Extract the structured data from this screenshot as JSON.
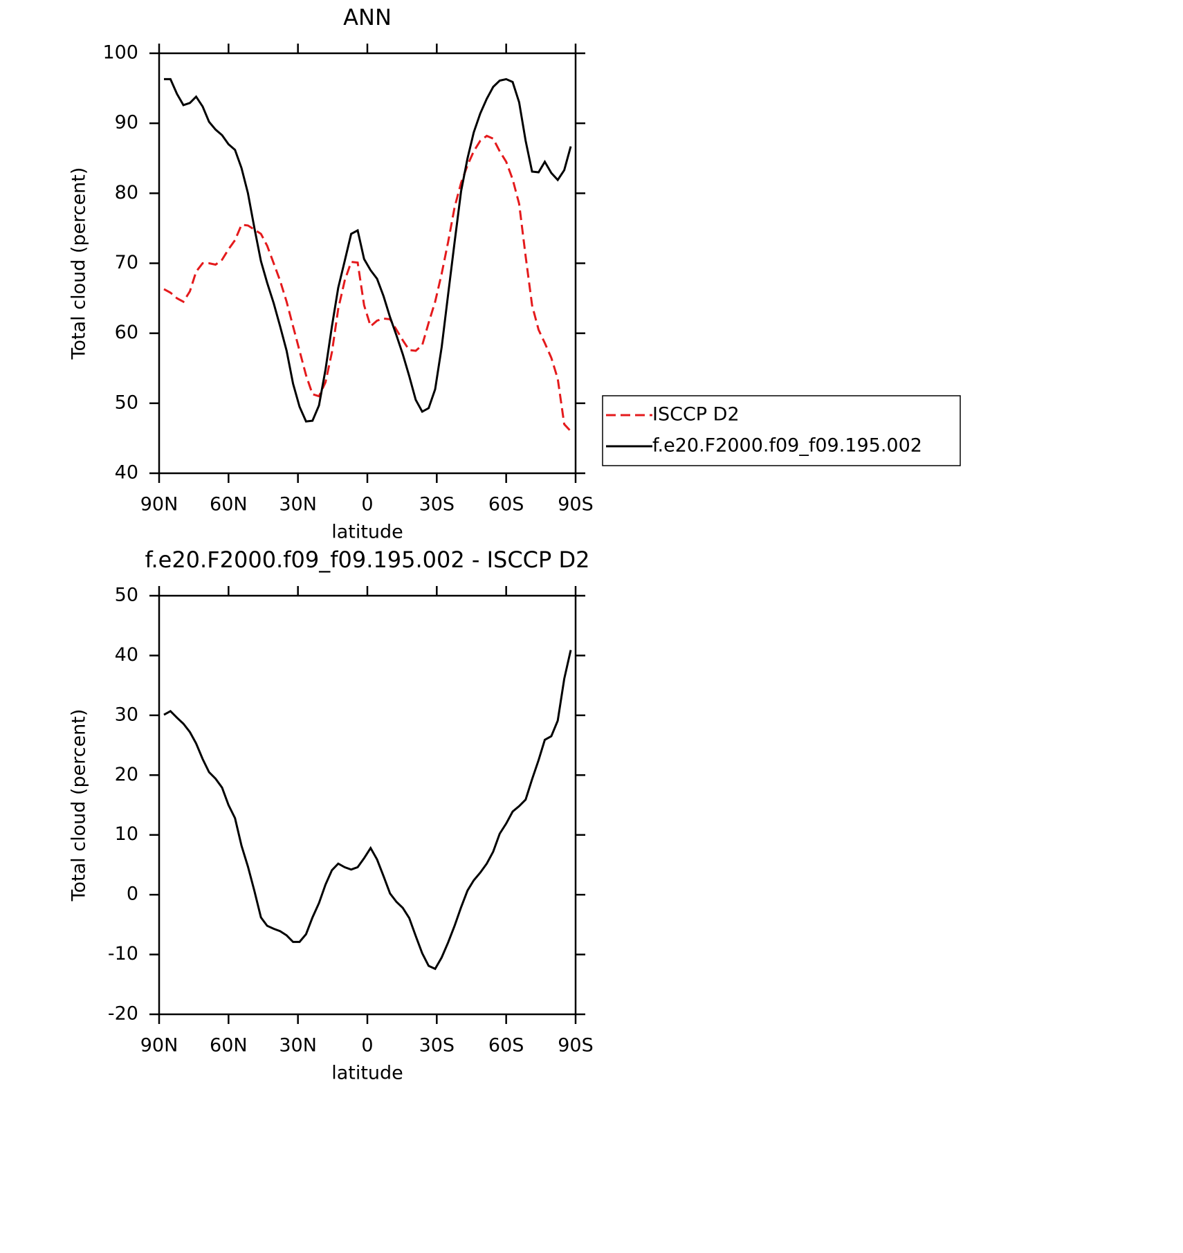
{
  "chart_data": [
    {
      "type": "line",
      "title": "ANN",
      "xlabel": "latitude",
      "ylabel": "Total cloud (percent)",
      "x": [
        87.9,
        85.1,
        82.3,
        79.5,
        76.7,
        74.0,
        71.2,
        68.4,
        65.6,
        62.8,
        60.0,
        57.2,
        54.4,
        51.6,
        48.8,
        46.0,
        43.3,
        40.5,
        37.7,
        34.9,
        32.1,
        29.3,
        26.5,
        23.7,
        20.9,
        18.1,
        15.3,
        12.6,
        9.8,
        7.0,
        4.2,
        1.4,
        -1.4,
        -4.2,
        -7.0,
        -9.8,
        -12.6,
        -15.3,
        -18.1,
        -20.9,
        -23.7,
        -26.5,
        -29.3,
        -32.1,
        -34.9,
        -37.7,
        -40.5,
        -43.3,
        -46.0,
        -48.8,
        -51.6,
        -54.4,
        -57.2,
        -60.0,
        -62.8,
        -65.6,
        -68.4,
        -71.2,
        -74.0,
        -76.7,
        -79.5,
        -82.3,
        -85.1,
        -87.9
      ],
      "series": [
        {
          "name": "ISCCP D2",
          "color": "#e41a1c",
          "style": "dashed",
          "values": [
            66.3,
            65.8,
            65.0,
            64.5,
            66.0,
            68.8,
            70.0,
            70.0,
            69.8,
            70.5,
            72.0,
            73.3,
            75.5,
            75.4,
            74.8,
            74.2,
            72.5,
            70.0,
            67.5,
            64.5,
            61.0,
            57.5,
            54.0,
            51.3,
            51.0,
            53.0,
            57.3,
            63.5,
            67.5,
            70.2,
            70.1,
            64.0,
            61.0,
            61.8,
            62.1,
            62.0,
            60.5,
            59.0,
            57.6,
            57.5,
            58.3,
            61.5,
            64.5,
            68.5,
            73.0,
            78.0,
            81.5,
            84.0,
            86.0,
            87.5,
            88.2,
            87.8,
            86.0,
            84.5,
            82.0,
            78.5,
            71.0,
            64.0,
            60.5,
            58.6,
            56.5,
            53.5,
            47.0,
            46.0
          ]
        },
        {
          "name": "f.e20.F2000.f09_f09.195.002",
          "color": "#000000",
          "style": "solid",
          "values": [
            96.3,
            96.3,
            94.2,
            92.6,
            92.9,
            93.8,
            92.4,
            90.2,
            89.1,
            88.3,
            87.0,
            86.2,
            83.6,
            80.0,
            75.0,
            70.3,
            67.2,
            64.3,
            61.0,
            57.5,
            52.8,
            49.5,
            47.4,
            47.5,
            49.7,
            54.8,
            61.0,
            66.5,
            70.3,
            74.2,
            74.7,
            70.6,
            69.0,
            67.8,
            65.3,
            62.3,
            59.7,
            57.0,
            53.9,
            50.5,
            48.8,
            49.3,
            52.0,
            58.0,
            65.5,
            73.0,
            80.3,
            85.0,
            88.7,
            91.4,
            93.5,
            95.2,
            96.1,
            96.3,
            95.9,
            93.0,
            87.5,
            83.1,
            83.0,
            84.5,
            82.9,
            81.9,
            83.3,
            86.7
          ]
        }
      ],
      "xlim": [
        90,
        -90
      ],
      "xticks": [
        {
          "value": 90,
          "label": "90N"
        },
        {
          "value": 60,
          "label": "60N"
        },
        {
          "value": 30,
          "label": "30N"
        },
        0,
        {
          "value": -30,
          "label": "30S"
        },
        {
          "value": -60,
          "label": "60S"
        },
        {
          "value": -90,
          "label": "90S"
        }
      ],
      "ylim": [
        40,
        100
      ],
      "yticks": [
        40,
        50,
        60,
        70,
        80,
        90,
        100
      ],
      "grid": false,
      "legend": "right"
    },
    {
      "type": "line",
      "title": "f.e20.F2000.f09_f09.195.002 - ISCCP D2",
      "xlabel": "latitude",
      "ylabel": "Total cloud (percent)",
      "x": [
        87.9,
        85.1,
        82.3,
        79.5,
        76.7,
        74.0,
        71.2,
        68.4,
        65.6,
        62.8,
        60.0,
        57.2,
        54.4,
        51.6,
        48.8,
        46.0,
        43.3,
        40.5,
        37.7,
        34.9,
        32.1,
        29.3,
        26.5,
        23.7,
        20.9,
        18.1,
        15.3,
        12.6,
        9.8,
        7.0,
        4.2,
        1.4,
        -1.4,
        -4.2,
        -7.0,
        -9.8,
        -12.6,
        -15.3,
        -18.1,
        -20.9,
        -23.7,
        -26.5,
        -29.3,
        -32.1,
        -34.9,
        -37.7,
        -40.5,
        -43.3,
        -46.0,
        -48.8,
        -51.6,
        -54.4,
        -57.2,
        -60.0,
        -62.8,
        -65.6,
        -68.4,
        -71.2,
        -74.0,
        -76.7,
        -79.5,
        -82.3,
        -85.1,
        -87.9
      ],
      "values": [
        30.1,
        30.7,
        29.6,
        28.6,
        27.2,
        25.3,
        22.7,
        20.5,
        19.4,
        17.9,
        15.0,
        12.8,
        8.2,
        4.7,
        0.6,
        -3.8,
        -5.2,
        -5.7,
        -6.1,
        -6.8,
        -7.9,
        -7.9,
        -6.6,
        -3.8,
        -1.4,
        1.7,
        4.1,
        5.2,
        4.6,
        4.2,
        4.6,
        6.1,
        7.8,
        5.9,
        3.1,
        0.2,
        -1.2,
        -2.2,
        -3.9,
        -6.9,
        -9.8,
        -11.9,
        -12.4,
        -10.5,
        -8.0,
        -5.2,
        -2.1,
        0.7,
        2.4,
        3.7,
        5.2,
        7.2,
        10.2,
        11.9,
        13.9,
        14.8,
        15.9,
        19.3,
        22.5,
        25.9,
        26.5,
        29.1,
        36.1,
        40.9
      ],
      "color": "#000000",
      "xlim": [
        90,
        -90
      ],
      "xticks": [
        {
          "value": 90,
          "label": "90N"
        },
        {
          "value": 60,
          "label": "60N"
        },
        {
          "value": 30,
          "label": "30N"
        },
        0,
        {
          "value": -30,
          "label": "30S"
        },
        {
          "value": -60,
          "label": "60S"
        },
        {
          "value": -90,
          "label": "90S"
        }
      ],
      "ylim": [
        -20,
        50
      ],
      "yticks": [
        -20,
        -10,
        0,
        10,
        20,
        30,
        40,
        50
      ],
      "grid": false
    }
  ]
}
